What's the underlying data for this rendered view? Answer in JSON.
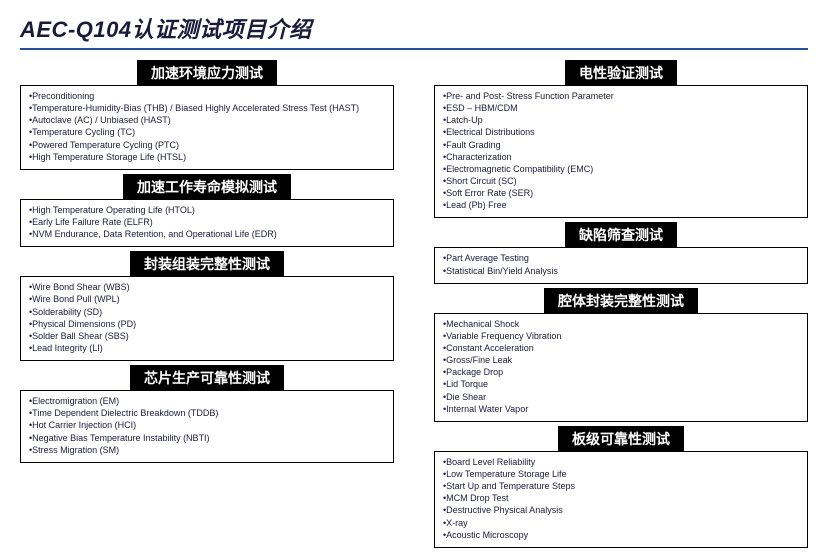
{
  "title": "AEC-Q104认证测试项目介绍",
  "colors": {
    "title": "#1a1a3a",
    "underline": "#2050a0",
    "section_bg": "#000000",
    "section_fg": "#ffffff",
    "text": "#1a1a3a",
    "border": "#000000"
  },
  "left": [
    {
      "title": "加速环境应力测试",
      "items": [
        "Preconditioning",
        "Temperature-Humidity-Bias (THB) / Biased Highly Accelerated Stress Test (HAST)",
        "Autoclave (AC) / Unbiased (HAST)",
        "Temperature Cycling (TC)",
        "Powered Temperature Cycling (PTC)",
        "High Temperature Storage Life (HTSL)"
      ]
    },
    {
      "title": "加速工作寿命模拟测试",
      "items": [
        "High Temperature Operating Life (HTOL)",
        "Early Life Failure Rate (ELFR)",
        "NVM Endurance, Data Retention, and Operational Life (EDR)"
      ]
    },
    {
      "title": "封装组装完整性测试",
      "items": [
        "Wire Bond Shear (WBS)",
        "Wire Bond Pull (WPL)",
        "Solderability (SD)",
        "Physical Dimensions (PD)",
        "Solder Ball Shear (SBS)",
        "Lead Integrity (LI)"
      ]
    },
    {
      "title": "芯片生产可靠性测试",
      "items": [
        "Electromigration (EM)",
        "Time Dependent Dielectric Breakdown (TDDB)",
        "Hot Carrier Injection (HCI)",
        "Negative Bias Temperature Instability (NBTI)",
        "Stress Migration (SM)"
      ]
    }
  ],
  "right": [
    {
      "title": "电性验证测试",
      "items": [
        "Pre- and Post- Stress Function Parameter",
        "ESD – HBM/CDM",
        "Latch-Up",
        "Electrical Distributions",
        "Fault Grading",
        "Characterization",
        "Electromagnetic Compatibility (EMC)",
        "Short Circuit (SC)",
        "Soft Error Rate (SER)",
        "Lead (Pb) Free"
      ]
    },
    {
      "title": "缺陷筛查测试",
      "items": [
        "Part Average Testing",
        "Statistical Bin/Yield Analysis"
      ]
    },
    {
      "title": "腔体封装完整性测试",
      "items": [
        "Mechanical Shock",
        "Variable Frequency Vibration",
        "Constant Acceleration",
        "Gross/Fine Leak",
        "Package Drop",
        "Lid Torque",
        "Die Shear",
        "Internal Water Vapor"
      ]
    },
    {
      "title": "板级可靠性测试",
      "items": [
        "Board Level Reliability",
        "Low Temperature Storage Life",
        "Start Up and Temperature Steps",
        "MCM Drop Test",
        "Destructive Physical Analysis",
        "X-ray",
        "Acoustic Microscopy"
      ]
    }
  ]
}
